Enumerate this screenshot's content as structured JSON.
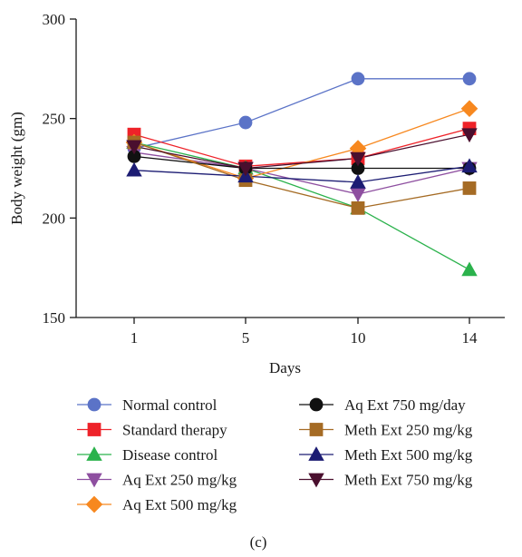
{
  "chart_data": {
    "type": "line",
    "categories": [
      "1",
      "5",
      "10",
      "14"
    ],
    "xlabel": "Days",
    "ylabel": "Body weight (gm)",
    "ylim": [
      150,
      300
    ],
    "yticks": [
      150,
      200,
      250,
      300
    ],
    "grid": false,
    "legend_placement": "bottom, two columns",
    "panel_label": "(c)",
    "series": [
      {
        "name": "Normal control",
        "values": [
          235,
          248,
          270,
          270
        ],
        "color": "#5b73c7",
        "marker": "circle"
      },
      {
        "name": "Standard therapy",
        "values": [
          242,
          226,
          230,
          245
        ],
        "color": "#ee2229",
        "marker": "square"
      },
      {
        "name": "Disease control",
        "values": [
          238,
          225,
          205,
          174
        ],
        "color": "#2bb24c",
        "marker": "triangle-up"
      },
      {
        "name": "Aq Ext 250 mg/kg",
        "values": [
          233,
          225,
          212,
          225
        ],
        "color": "#8e4fa0",
        "marker": "triangle-down"
      },
      {
        "name": "Aq Ext 500 mg/kg",
        "values": [
          238,
          220,
          235,
          255
        ],
        "color": "#f7881f",
        "marker": "diamond"
      },
      {
        "name": "Aq Ext 750 mg/day",
        "values": [
          231,
          225,
          225,
          225
        ],
        "color": "#111111",
        "marker": "circle"
      },
      {
        "name": "Meth Ext 250 mg/kg",
        "values": [
          238,
          219,
          205,
          215
        ],
        "color": "#a56b24",
        "marker": "square"
      },
      {
        "name": "Meth Ext 500 mg/kg",
        "values": [
          224,
          221,
          218,
          226
        ],
        "color": "#1c1c73",
        "marker": "triangle-up"
      },
      {
        "name": "Meth Ext 750 mg/kg",
        "values": [
          236,
          225,
          230,
          242
        ],
        "color": "#4a0f2e",
        "marker": "triangle-down"
      }
    ]
  }
}
